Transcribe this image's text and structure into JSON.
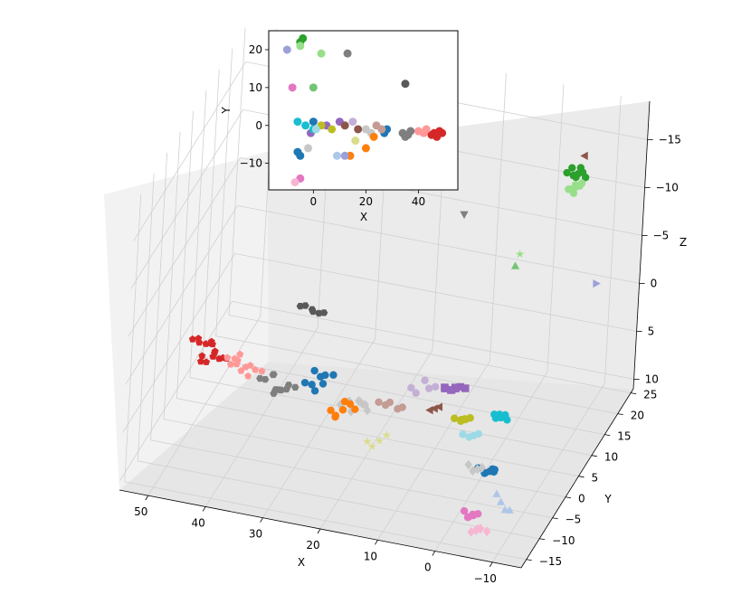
{
  "chart_data": [
    {
      "type": "scatter",
      "projection": "3d",
      "title": "",
      "xlabel": "X",
      "ylabel": "Y",
      "zlabel": "Z",
      "xlim": [
        -15,
        55
      ],
      "ylim": [
        -17,
        26
      ],
      "zlim": [
        11,
        -19
      ],
      "x_ticks": [
        -10,
        0,
        10,
        20,
        30,
        40,
        50
      ],
      "y_ticks": [
        -15,
        -10,
        -5,
        0,
        5,
        10,
        15,
        20,
        25
      ],
      "z_ticks": [
        -15,
        -10,
        -5,
        0,
        5,
        10
      ],
      "grid": true,
      "legend": "none",
      "series": [
        {
          "color": "#d62728",
          "marker": "pentagon",
          "x": [
            46,
            47,
            48,
            45,
            49,
            46,
            48,
            47,
            50,
            44,
            47,
            45,
            49,
            46,
            48,
            47
          ],
          "y": [
            -2,
            -1.5,
            -2.5,
            -1,
            -2,
            -2.8,
            -1.2,
            -3,
            -2,
            -1.8,
            -0.8,
            -2.6,
            -1.6,
            -2.2,
            -2.9,
            -1.3
          ],
          "z": [
            2,
            1.5,
            2.5,
            3,
            1,
            2.2,
            1.8,
            2.8,
            1.2,
            2.6,
            1.9,
            2.4,
            1.6,
            2.1,
            2.9,
            1.4
          ]
        },
        {
          "color": "#ff9896",
          "marker": "pentagon",
          "x": [
            40,
            42,
            41,
            43,
            39,
            42,
            40,
            44,
            41,
            43,
            38,
            42
          ],
          "y": [
            -1.5,
            -2,
            -1,
            -2.5,
            -1.8,
            -1.2,
            -2.2,
            -1.6,
            -2.8,
            -0.9,
            -1.4,
            -2.4
          ],
          "z": [
            3,
            2.5,
            3.5,
            2.8,
            3.2,
            2.2,
            3.8,
            2.6,
            3.1,
            2.9,
            3.4,
            2.7
          ]
        },
        {
          "color": "#7f7f7f",
          "marker": "hexagon",
          "x": [
            33,
            35,
            36,
            34,
            37,
            35,
            33,
            36,
            34,
            38,
            35,
            32
          ],
          "y": [
            -2,
            -2.5,
            -1.5,
            -3,
            -2.2,
            -1.8,
            -2.8,
            -1.2,
            -2.6,
            -2,
            -3.2,
            -1.6
          ],
          "z": [
            4,
            4.5,
            3.5,
            4.2,
            3.8,
            4.8,
            4.1,
            3.6,
            4.4,
            3.9,
            4.6,
            4.3
          ]
        },
        {
          "color": "#595959",
          "marker": "hexagon",
          "x": [
            35,
            34,
            36,
            33,
            37,
            35
          ],
          "y": [
            11,
            11.5,
            10.5,
            11.2,
            10.8,
            11.4
          ],
          "z": [
            2,
            2.5,
            1.5,
            2.2,
            1.8,
            2.4
          ]
        },
        {
          "color": "#1f77b4",
          "marker": "circle",
          "x": [
            28,
            29,
            27,
            30,
            26,
            28,
            29,
            27,
            -5,
            -4,
            -6,
            -5,
            -3,
            -4,
            -6
          ],
          "y": [
            -1,
            -2,
            -1.5,
            -2.5,
            -0.5,
            -3,
            -1.2,
            -2.2,
            -8,
            -7.5,
            -8.5,
            -7,
            -8.2,
            -7.8,
            -8.8
          ],
          "z": [
            3,
            3.5,
            2.5,
            3.2,
            2.8,
            3.6,
            2.4,
            3.1,
            6,
            6.5,
            5.5,
            6.2,
            5.8,
            6.4,
            5.6
          ]
        },
        {
          "color": "#c7c7c7",
          "marker": "diamond",
          "x": [
            20,
            22,
            21,
            23,
            19,
            22,
            20,
            24,
            21,
            -2,
            -1,
            -3,
            0
          ],
          "y": [
            -1,
            -2,
            -1.5,
            -0.5,
            -2.5,
            -1.2,
            -2.2,
            -1.8,
            -0.8,
            -6,
            -5.5,
            -6.5,
            -5
          ],
          "z": [
            5,
            5.5,
            4.5,
            5.2,
            4.8,
            5.6,
            4.4,
            5.1,
            4.9,
            7,
            7.5,
            6.5,
            7.2
          ]
        },
        {
          "color": "#ff7f0e",
          "marker": "circle",
          "x": [
            23,
            24,
            22,
            25,
            21,
            24,
            23
          ],
          "y": [
            -3,
            -3.5,
            -2.5,
            -3.2,
            -2.8,
            -3.6,
            -2.4
          ],
          "z": [
            5,
            5.5,
            4.5,
            5.2,
            4.8,
            5.6,
            4.4
          ]
        },
        {
          "color": "#e377c2",
          "marker": "circle",
          "x": [
            -5,
            -4,
            -6,
            -3,
            -5,
            -4
          ],
          "y": [
            -14,
            -13.5,
            -14.5,
            -13,
            -14.2,
            -13.8
          ],
          "z": [
            8,
            8.5,
            7.5,
            8.2,
            7.8,
            8.4
          ]
        },
        {
          "color": "#2ca02c",
          "marker": "circle",
          "x": [
            -5,
            -4,
            -6,
            -5,
            -3,
            -4,
            -6,
            -5
          ],
          "y": [
            22,
            22.5,
            21.5,
            23,
            22.2,
            21.8,
            22.8,
            21.2
          ],
          "z": [
            -12,
            -11.5,
            -12.5,
            -12.2,
            -11.8,
            -12.6,
            -11.4,
            -12
          ]
        },
        {
          "color": "#98df8a",
          "marker": "circle",
          "x": [
            -5,
            -4,
            -6,
            -5,
            -4,
            -6,
            -5
          ],
          "y": [
            21,
            21.5,
            20.5,
            21.2,
            20.8,
            21.4,
            20.6
          ],
          "z": [
            -11,
            -10.5,
            -11.5,
            -11.2,
            -10.8,
            -11.4,
            -10.6
          ]
        },
        {
          "color": "#9467bd",
          "marker": "square",
          "x": [
            5,
            6,
            4,
            7,
            5,
            6,
            3,
            7
          ],
          "y": [
            0,
            0.5,
            -0.5,
            0.2,
            -0.2,
            0.8,
            -0.8,
            0.4
          ],
          "z": [
            2,
            2.5,
            1.5,
            2.2,
            1.8,
            2.6,
            1.4,
            2.4
          ]
        },
        {
          "color": "#bcbd22",
          "marker": "circle",
          "x": [
            3,
            4,
            2,
            5,
            3,
            4
          ],
          "y": [
            0,
            0.5,
            -0.5,
            0.2,
            -0.3,
            0.6
          ],
          "z": [
            5,
            5.5,
            4.5,
            5.2,
            4.8,
            5.4
          ]
        },
        {
          "color": "#17becf",
          "marker": "circle",
          "x": [
            -3,
            -2,
            -4,
            -3,
            -2,
            -4,
            -3
          ],
          "y": [
            0,
            0.5,
            -0.5,
            0.2,
            -0.2,
            0.4,
            -0.4
          ],
          "z": [
            4,
            4.5,
            3.5,
            4.2,
            3.8,
            4.4,
            3.6
          ]
        },
        {
          "color": "#c5b0d5",
          "marker": "circle",
          "x": [
            10,
            12,
            11,
            13,
            9
          ],
          "y": [
            1,
            0.5,
            1.5,
            0.8,
            1.2
          ],
          "z": [
            3,
            3.5,
            2.5,
            3.2,
            2.8
          ]
        },
        {
          "color": "#8c564b",
          "marker": "triangle-left",
          "x": [
            8,
            9,
            7,
            -6
          ],
          "y": [
            -1,
            -0.5,
            -1.5,
            22
          ],
          "z": [
            4,
            4.5,
            3.5,
            -14
          ]
        },
        {
          "color": "#c49c94",
          "marker": "circle",
          "x": [
            14,
            15,
            16,
            17,
            18
          ],
          "y": [
            0,
            0.5,
            -0.5,
            0.2,
            -0.3
          ],
          "z": [
            5,
            5.5,
            4.5,
            5.2,
            4.8
          ]
        },
        {
          "color": "#aec7e8",
          "marker": "triangle-up",
          "x": [
            -8,
            -9,
            -7,
            -10
          ],
          "y": [
            -10,
            -10.5,
            -9.5,
            -11
          ],
          "z": [
            8,
            8.5,
            7.5,
            8.2
          ]
        },
        {
          "color": "#f7b6d2",
          "marker": "diamond",
          "x": [
            -6,
            -5,
            -7,
            -6,
            -8
          ],
          "y": [
            -15,
            -14.5,
            -15.5,
            -14.2,
            -15.2
          ],
          "z": [
            9,
            9.5,
            8.5,
            9.2,
            8.8
          ]
        },
        {
          "color": "#dbdb8d",
          "marker": "star",
          "x": [
            16,
            17,
            15,
            18
          ],
          "y": [
            -4,
            -4.5,
            -3.5,
            -4.2
          ],
          "z": [
            7,
            7.5,
            6.5,
            7.2
          ]
        },
        {
          "color": "#9edae5",
          "marker": "circle",
          "x": [
            1,
            2,
            0,
            3
          ],
          "y": [
            -1,
            -0.5,
            -1.5,
            -0.8
          ],
          "z": [
            6,
            6.5,
            5.5,
            6.2
          ]
        },
        {
          "color": "#7f7f7f",
          "marker": "triangle-down",
          "x": [
            13
          ],
          "y": [
            19
          ],
          "z": [
            -7
          ]
        },
        {
          "color": "#98df8a",
          "marker": "star",
          "x": [
            3
          ],
          "y": [
            19
          ],
          "z": [
            -4
          ]
        },
        {
          "color": "#74c476",
          "marker": "triangle-up",
          "x": [
            0
          ],
          "y": [
            10
          ],
          "z": [
            -7
          ]
        },
        {
          "color": "#9da0d8",
          "marker": "triangle-right",
          "x": [
            -10
          ],
          "y": [
            20
          ],
          "z": [
            -2
          ]
        }
      ]
    },
    {
      "type": "scatter",
      "title": "",
      "xlabel": "X",
      "ylabel": "Y",
      "xlim": [
        -17,
        55
      ],
      "ylim": [
        -17,
        25
      ],
      "x_ticks": [
        0,
        20,
        40
      ],
      "y_ticks": [
        -10,
        0,
        10,
        20
      ],
      "grid": false,
      "legend": "none",
      "note_series": "same points as the 3D view, projected on X-Y",
      "points": [
        {
          "color": "#d62728",
          "x": 46,
          "y": -2
        },
        {
          "color": "#d62728",
          "x": 48,
          "y": -1.5
        },
        {
          "color": "#d62728",
          "x": 47,
          "y": -3
        },
        {
          "color": "#d62728",
          "x": 45,
          "y": -2.5
        },
        {
          "color": "#d62728",
          "x": 49,
          "y": -2
        },
        {
          "color": "#ff9896",
          "x": 40,
          "y": -1.5
        },
        {
          "color": "#ff9896",
          "x": 42,
          "y": -2
        },
        {
          "color": "#ff9896",
          "x": 43,
          "y": -1
        },
        {
          "color": "#7f7f7f",
          "x": 34,
          "y": -2
        },
        {
          "color": "#7f7f7f",
          "x": 35,
          "y": -3
        },
        {
          "color": "#7f7f7f",
          "x": 36,
          "y": -2.5
        },
        {
          "color": "#7f7f7f",
          "x": 37,
          "y": -1.5
        },
        {
          "color": "#595959",
          "x": 35,
          "y": 11
        },
        {
          "color": "#1f77b4",
          "x": 28,
          "y": -1
        },
        {
          "color": "#1f77b4",
          "x": 27,
          "y": -2
        },
        {
          "color": "#1f77b4",
          "x": -5,
          "y": -8
        },
        {
          "color": "#1f77b4",
          "x": 0,
          "y": 1
        },
        {
          "color": "#c7c7c7",
          "x": 20,
          "y": -1
        },
        {
          "color": "#c7c7c7",
          "x": 22,
          "y": -2
        },
        {
          "color": "#c7c7c7",
          "x": -2,
          "y": -6
        },
        {
          "color": "#c49c94",
          "x": 24,
          "y": 0
        },
        {
          "color": "#c49c94",
          "x": 26,
          "y": -1
        },
        {
          "color": "#ff7f0e",
          "x": 23,
          "y": -3
        },
        {
          "color": "#ff7f0e",
          "x": 14,
          "y": -8
        },
        {
          "color": "#2ca02c",
          "x": -5,
          "y": 22
        },
        {
          "color": "#2ca02c",
          "x": -4,
          "y": 23
        },
        {
          "color": "#98df8a",
          "x": -5,
          "y": 21
        },
        {
          "color": "#9467bd",
          "x": 5,
          "y": 0
        },
        {
          "color": "#9467bd",
          "x": 10,
          "y": 1
        },
        {
          "color": "#9467bd",
          "x": -1,
          "y": -2
        },
        {
          "color": "#bcbd22",
          "x": 3,
          "y": 0
        },
        {
          "color": "#bcbd22",
          "x": 7,
          "y": -1
        },
        {
          "color": "#17becf",
          "x": -3,
          "y": 0
        },
        {
          "color": "#17becf",
          "x": -6,
          "y": 1
        },
        {
          "color": "#17becf",
          "x": 0,
          "y": -1
        },
        {
          "color": "#e377c2",
          "x": -5,
          "y": -14
        },
        {
          "color": "#e377c2",
          "x": -8,
          "y": 10
        },
        {
          "color": "#8c564b",
          "x": 12,
          "y": 0
        },
        {
          "color": "#8c564b",
          "x": 17,
          "y": -1
        },
        {
          "color": "#c5b0d5",
          "x": 15,
          "y": 1
        },
        {
          "color": "#aec7e8",
          "x": 9,
          "y": -8
        },
        {
          "color": "#dbdb8d",
          "x": 16,
          "y": -4
        },
        {
          "color": "#f7b6d2",
          "x": -7,
          "y": -15
        },
        {
          "color": "#9edae5",
          "x": 1,
          "y": -1
        },
        {
          "color": "#9da0d8",
          "x": -10,
          "y": 20
        },
        {
          "color": "#7f7f7f",
          "x": 13,
          "y": 19
        },
        {
          "color": "#98df8a",
          "x": 3,
          "y": 19
        },
        {
          "color": "#74c476",
          "x": 0,
          "y": 10
        },
        {
          "color": "#9da0d8",
          "x": 12,
          "y": -8
        },
        {
          "color": "#ff7f0e",
          "x": 20,
          "y": -6
        },
        {
          "color": "#1f77b4",
          "x": -6,
          "y": -7
        }
      ]
    }
  ]
}
